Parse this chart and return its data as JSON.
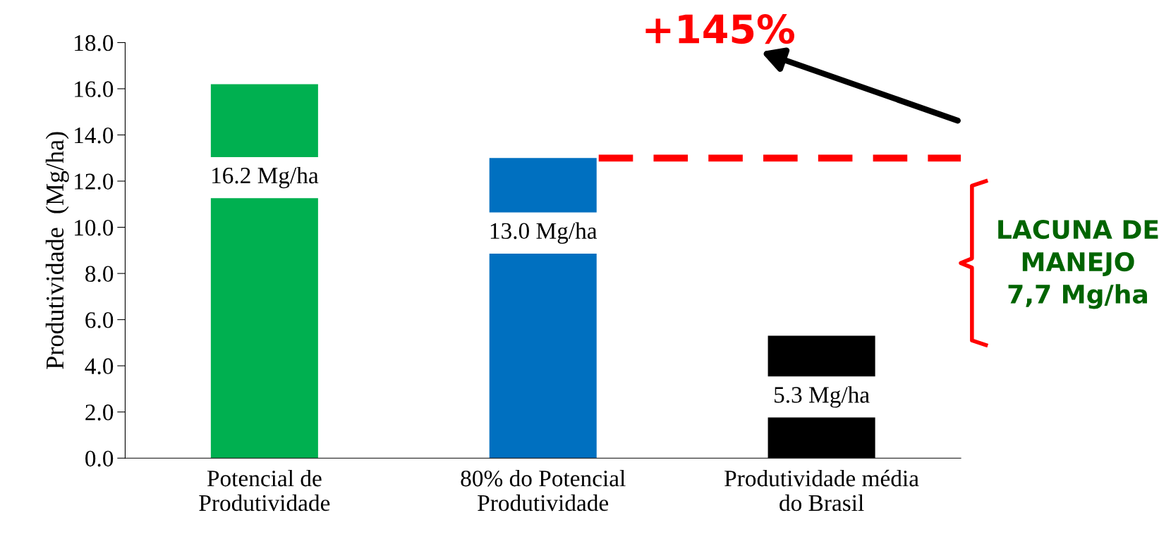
{
  "chart_data": {
    "type": "bar",
    "ylabel": "Produtividade  (Mg/ha)",
    "categories": [
      "Potencial de\nProdutividade",
      "80% do Potencial\nProdutividade",
      "Produtividade média\ndo Brasil"
    ],
    "values": [
      16.2,
      13.0,
      5.3
    ],
    "colors": [
      "#00b050",
      "#0070c0",
      "#000000"
    ],
    "value_labels": [
      "16.2 Mg/ha",
      "13.0 Mg/ha",
      "5.3 Mg/ha"
    ],
    "ylim": [
      0,
      18
    ],
    "yticks": [
      {
        "value": 0,
        "label": "0.0"
      },
      {
        "value": 2,
        "label": "2.0"
      },
      {
        "value": 4,
        "label": "4.0"
      },
      {
        "value": 6,
        "label": "6.0"
      },
      {
        "value": 8,
        "label": "8.0"
      },
      {
        "value": 10,
        "label": "10.0"
      },
      {
        "value": 12,
        "label": "12.0"
      },
      {
        "value": 14,
        "label": "14.0"
      },
      {
        "value": 16,
        "label": "16.0"
      },
      {
        "value": 18,
        "label": "18.0"
      }
    ],
    "ref_lines": [
      {
        "axis": "y",
        "value": 13.0,
        "color": "#ff0000",
        "line_style": "dashed"
      }
    ],
    "annotations": [
      "+145%",
      "LACUNA DE\nMANEJO\n7,7 Mg/ha"
    ],
    "grid": false,
    "legend": false
  }
}
